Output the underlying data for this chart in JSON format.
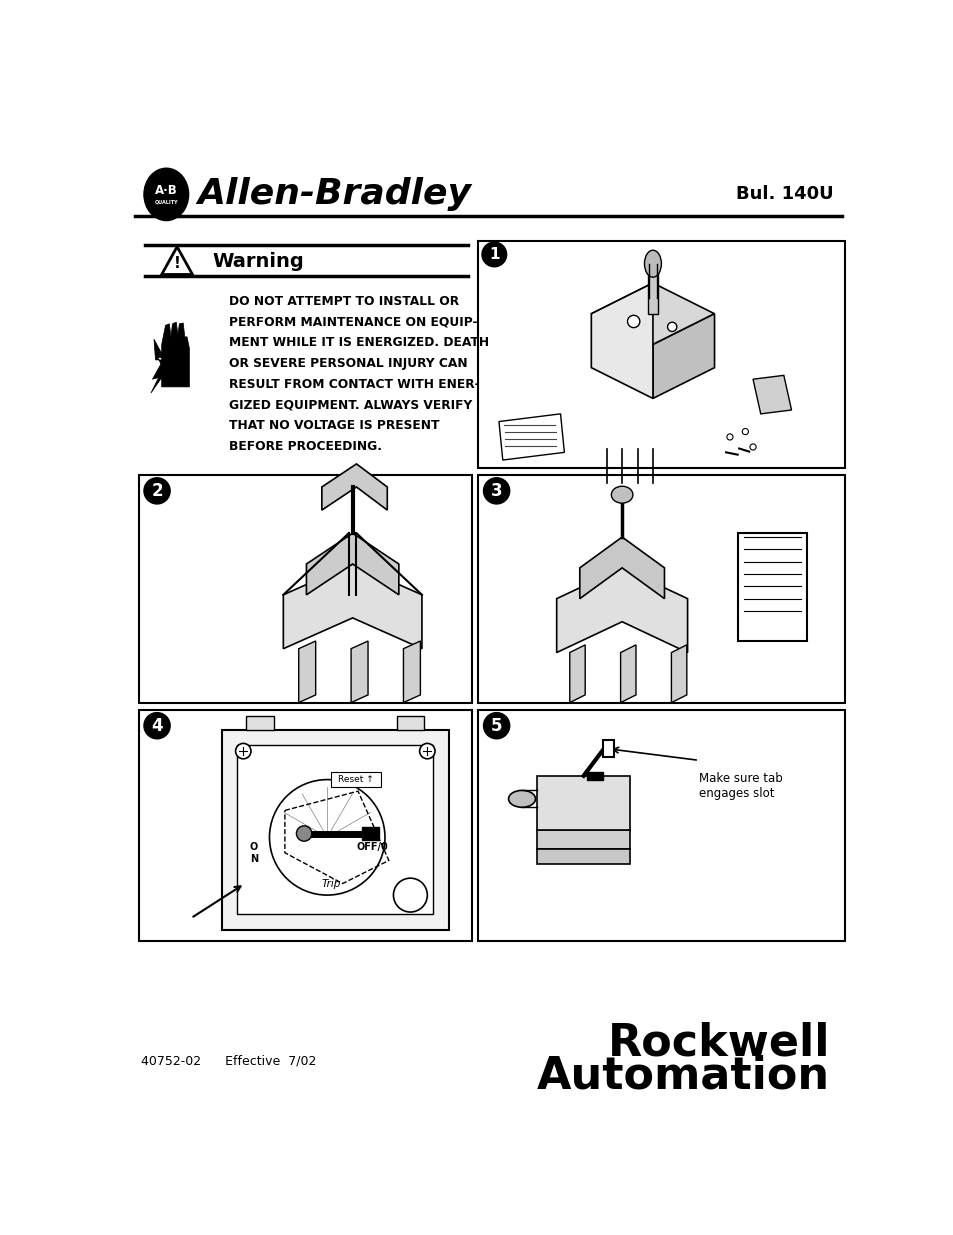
{
  "bg_color": "#ffffff",
  "header": {
    "brand_name": "Allen-Bradley",
    "bulletin": "Bul. 140U"
  },
  "warning": {
    "title": "Warning",
    "text_lines": [
      "DO NOT ATTEMPT TO INSTALL OR",
      "PERFORM MAINTENANCE ON EQUIP-",
      "MENT WHILE IT IS ENERGIZED. DEATH",
      "OR SEVERE PERSONAL INJURY CAN",
      "RESULT FROM CONTACT WITH ENER-",
      "GIZED EQUIPMENT. ALWAYS VERIFY",
      "THAT NO VOLTAGE IS PRESENT",
      "BEFORE PROCEEDING."
    ]
  },
  "step5_note": "Make sure tab\nengages slot",
  "footer": {
    "left_text": "40752-02      Effective  7/02",
    "right_line1": "Rockwell",
    "right_line2": "Automation"
  }
}
